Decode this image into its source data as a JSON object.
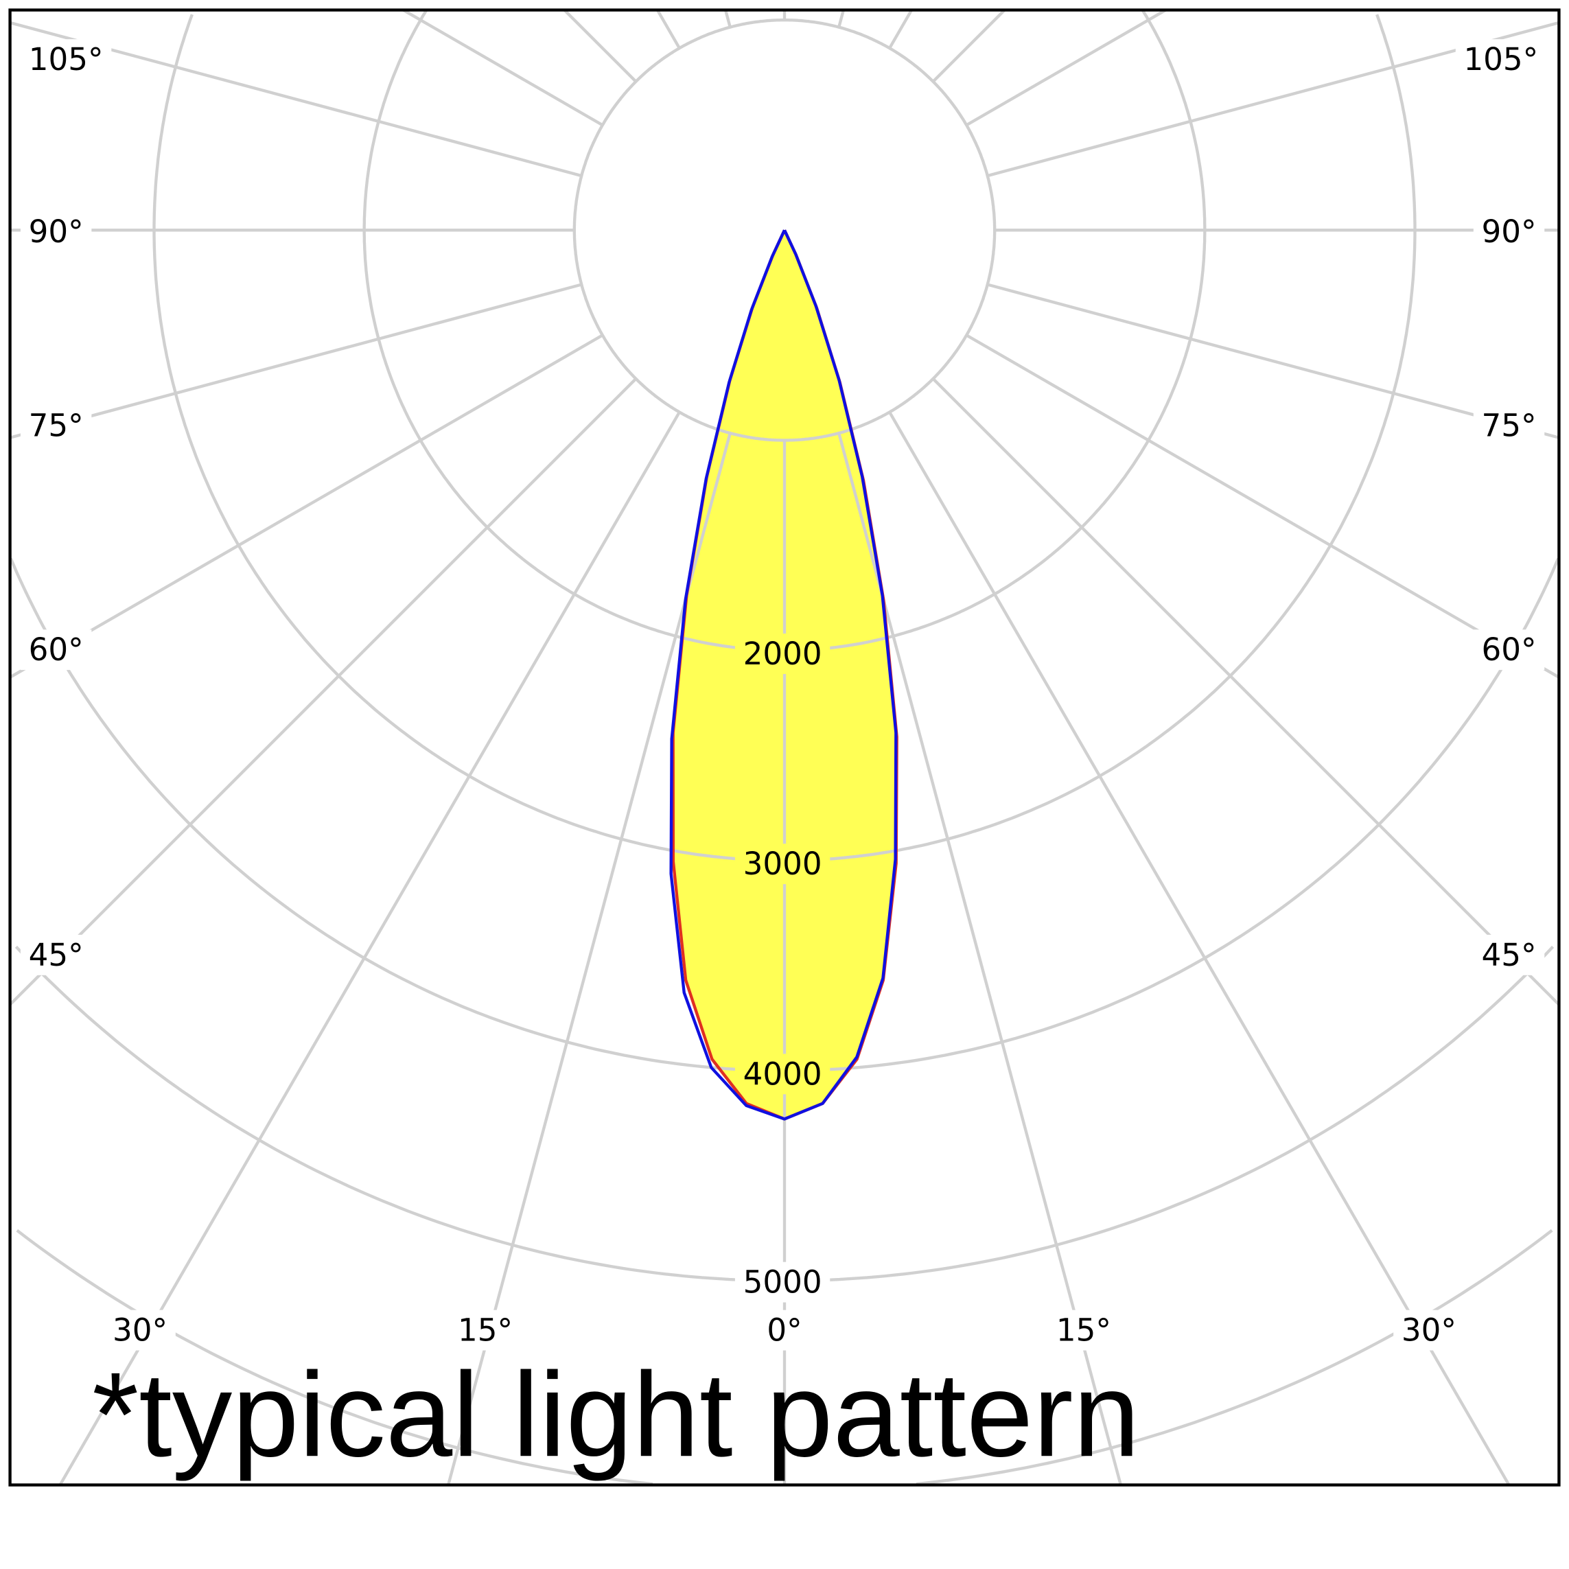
{
  "chart_data": {
    "type": "polar-line",
    "title": "*typical light pattern",
    "radial_ticks": [
      1000,
      2000,
      3000,
      4000,
      5000,
      6000,
      7000
    ],
    "radial_tick_labels": [
      "2000",
      "3000",
      "4000",
      "5000"
    ],
    "angle_labels_left": [
      "105°",
      "90°",
      "75°",
      "60°",
      "45°",
      "30°"
    ],
    "angle_labels_right": [
      "105°",
      "90°",
      "75°",
      "60°",
      "45°",
      "30°"
    ],
    "angle_labels_bottom": [
      "15°",
      "0°",
      "15°"
    ],
    "angle_step_deg": 15,
    "grid": true,
    "fill_color": "#ffff55",
    "series": [
      {
        "color": "#e03020",
        "angles": [
          -27.5,
          -25,
          -22.5,
          -20,
          -17.5,
          -15,
          -12.5,
          -10,
          -7.5,
          -5,
          -2.5,
          0,
          2.5,
          5,
          7.5,
          10,
          12.5,
          15,
          17.5,
          20,
          22.5,
          25,
          27.5
        ],
        "values": [
          0,
          130,
          400,
          760,
          1230,
          1800,
          2450,
          3050,
          3600,
          3960,
          4160,
          4230,
          4160,
          3960,
          3600,
          3060,
          2470,
          1820,
          1250,
          770,
          400,
          130,
          0
        ]
      },
      {
        "color": "#1010e0",
        "angles": [
          -27.5,
          -25,
          -22.5,
          -20,
          -17.5,
          -15,
          -12.5,
          -10,
          -7.5,
          -5,
          -2.5,
          0,
          2.5,
          5,
          7.5,
          10,
          12.5,
          15,
          17.5,
          20,
          22.5,
          25,
          27.5
        ],
        "values": [
          0,
          140,
          410,
          770,
          1240,
          1820,
          2480,
          3110,
          3660,
          4000,
          4170,
          4230,
          4160,
          3950,
          3590,
          3040,
          2450,
          1800,
          1230,
          760,
          390,
          125,
          0
        ]
      }
    ]
  }
}
